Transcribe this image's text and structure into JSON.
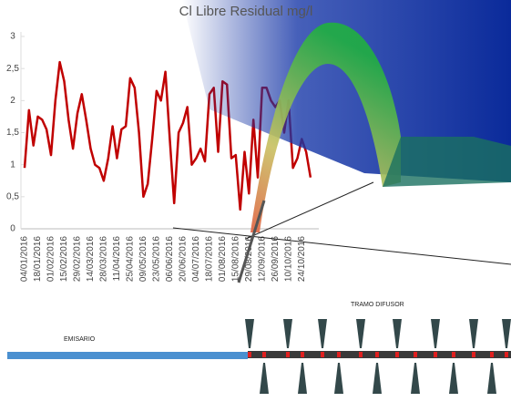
{
  "chart_data": {
    "type": "line",
    "title": "Cl Libre Residual mg/l",
    "categories": [
      "04/01/2016",
      null,
      null,
      "18/01/2016",
      null,
      null,
      "01/02/2016",
      null,
      null,
      "15/02/2016",
      null,
      null,
      "29/02/2016",
      null,
      null,
      "14/03/2016",
      null,
      null,
      "28/03/2016",
      null,
      null,
      "11/04/2016",
      null,
      null,
      "25/04/2016",
      null,
      null,
      "09/05/2016",
      null,
      null,
      "23/05/2016",
      null,
      null,
      "06/06/2016",
      null,
      null,
      "20/06/2016",
      null,
      null,
      "04/07/2016",
      null,
      null,
      "18/07/2016",
      null,
      null,
      "01/08/2016",
      null,
      null,
      "15/08/2016",
      null,
      null,
      "29/08/2016",
      null,
      null,
      "12/09/2016",
      null,
      null,
      "26/09/2016",
      null,
      null,
      "10/10/2016",
      null,
      null,
      "24/10/2016",
      null,
      null
    ],
    "series": [
      {
        "color": "#c00000",
        "values": [
          0.95,
          1.85,
          1.3,
          1.75,
          1.7,
          1.55,
          1.15,
          2.0,
          2.6,
          2.3,
          1.7,
          1.25,
          1.8,
          2.1,
          1.7,
          1.25,
          1.0,
          0.95,
          0.75,
          1.1,
          1.6,
          1.1,
          1.55,
          1.6,
          2.35,
          2.2,
          1.5,
          0.5,
          0.7,
          1.4,
          2.15,
          2.0,
          2.45,
          1.4,
          0.4,
          1.5,
          1.65,
          1.9,
          1.0,
          1.1,
          1.25,
          1.05,
          2.1,
          2.2,
          1.2,
          2.3,
          2.25,
          1.1,
          1.15,
          0.3,
          1.2,
          0.55,
          1.7,
          0.8,
          2.2,
          2.2,
          2.0,
          1.9,
          2.0,
          1.5,
          2.0,
          0.95,
          1.1,
          1.4,
          1.2,
          0.8
        ]
      }
    ],
    "ylim": [
      0,
      3
    ],
    "yticks": [
      0,
      {
        "value": 0.5,
        "label": "0,5"
      },
      1,
      {
        "value": 1.5,
        "label": "1,5"
      },
      2,
      {
        "value": 2.5,
        "label": "2,5"
      },
      3
    ],
    "grid": false
  },
  "diagram": {
    "emisario": "EMISARIO",
    "tramo_difusor": "TRAMO DIFUSOR"
  }
}
